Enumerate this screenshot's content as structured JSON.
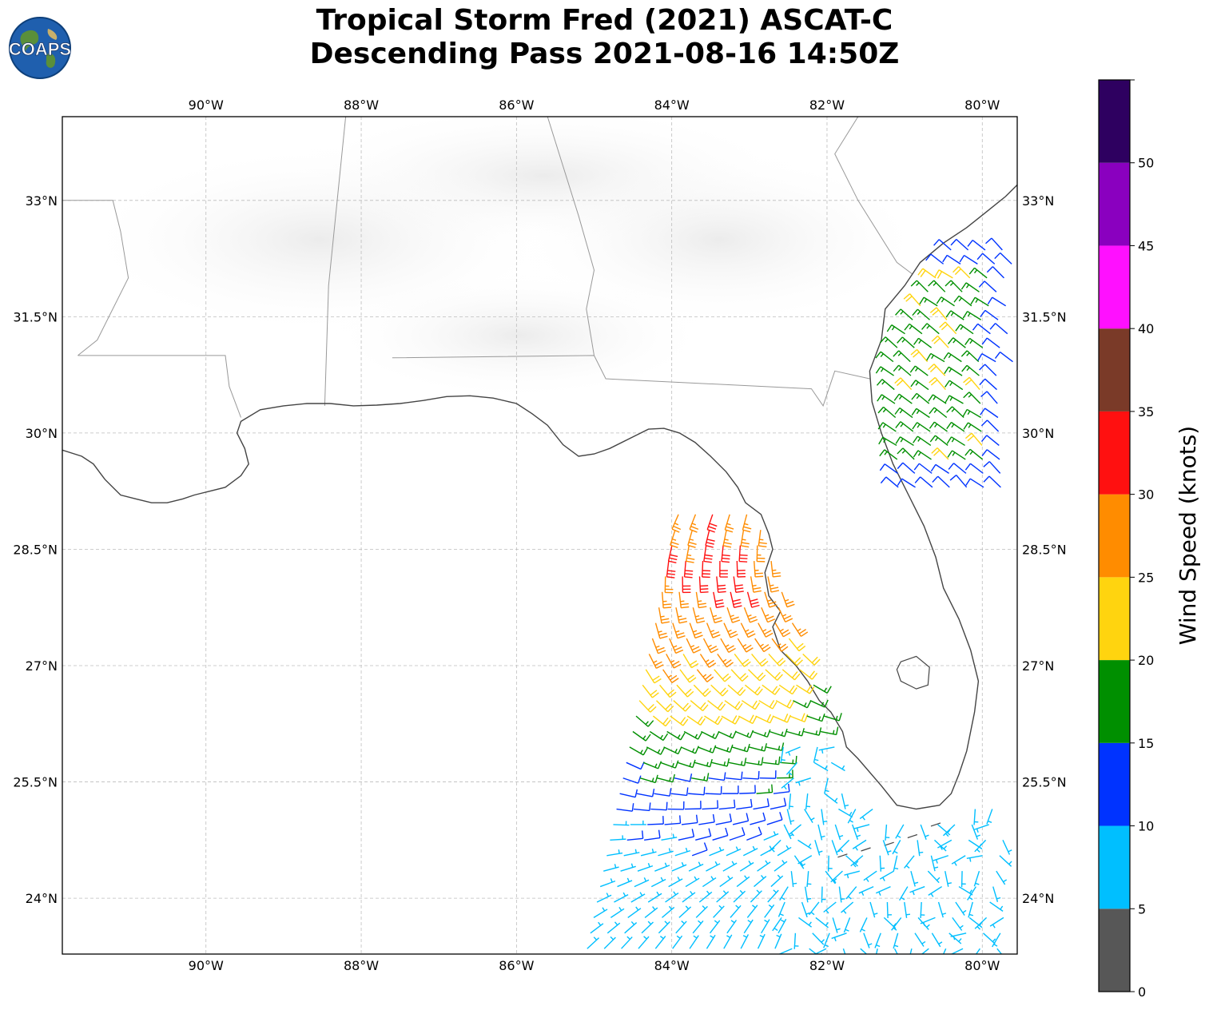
{
  "header": {
    "logo_text": "COAPS",
    "title_line1": "Tropical Storm Fred (2021) ASCAT-C",
    "title_line2": "Descending Pass 2021-08-16 14:50Z"
  },
  "map": {
    "lon_range": [
      -91.85,
      -79.55
    ],
    "lat_range": [
      23.28,
      34.08
    ],
    "lon_ticks": [
      "90°W",
      "88°W",
      "86°W",
      "84°W",
      "82°W",
      "80°W"
    ],
    "lon_tick_values": [
      -90,
      -88,
      -86,
      -84,
      -82,
      -80
    ],
    "lat_ticks": [
      "24°N",
      "25.5°N",
      "27°N",
      "28.5°N",
      "30°N",
      "31.5°N",
      "33°N"
    ],
    "lat_tick_values": [
      24,
      25.5,
      27,
      28.5,
      30,
      31.5,
      33
    ],
    "grid": "dashed",
    "background": "satellite cloud imagery (grayscale)",
    "coastline_color": "#444444",
    "border_color": "#999999",
    "barb_convention": "wind barbs, one full barb = 10 knots, half barb = 5 knots"
  },
  "colorbar": {
    "label": "Wind Speed (knots)",
    "tick_labels": [
      "0",
      "5",
      "10",
      "15",
      "20",
      "25",
      "30",
      "35",
      "40",
      "45",
      "50"
    ],
    "bins": [
      {
        "min": 0,
        "max": 5,
        "color": "#575757"
      },
      {
        "min": 5,
        "max": 10,
        "color": "#00bfff"
      },
      {
        "min": 10,
        "max": 15,
        "color": "#0033ff"
      },
      {
        "min": 15,
        "max": 20,
        "color": "#008f00"
      },
      {
        "min": 20,
        "max": 25,
        "color": "#ffd40f"
      },
      {
        "min": 25,
        "max": 30,
        "color": "#ff8c00"
      },
      {
        "min": 30,
        "max": 35,
        "color": "#ff1010"
      },
      {
        "min": 35,
        "max": 40,
        "color": "#7a3a28"
      },
      {
        "min": 40,
        "max": 45,
        "color": "#ff10ff"
      },
      {
        "min": 45,
        "max": 50,
        "color": "#8a00bf"
      },
      {
        "min": 50,
        "max": 55,
        "color": "#2e0060"
      }
    ]
  },
  "coastline": [
    [
      -91.85,
      29.78
    ],
    [
      -91.6,
      29.7
    ],
    [
      -91.45,
      29.6
    ],
    [
      -91.3,
      29.4
    ],
    [
      -91.1,
      29.2
    ],
    [
      -90.9,
      29.15
    ],
    [
      -90.7,
      29.1
    ],
    [
      -90.5,
      29.1
    ],
    [
      -90.3,
      29.15
    ],
    [
      -90.15,
      29.2
    ],
    [
      -89.95,
      29.25
    ],
    [
      -89.75,
      29.3
    ],
    [
      -89.55,
      29.45
    ],
    [
      -89.45,
      29.6
    ],
    [
      -89.5,
      29.8
    ],
    [
      -89.6,
      30.0
    ],
    [
      -89.55,
      30.15
    ],
    [
      -89.3,
      30.3
    ],
    [
      -89.0,
      30.35
    ],
    [
      -88.7,
      30.38
    ],
    [
      -88.4,
      30.38
    ],
    [
      -88.1,
      30.35
    ],
    [
      -87.8,
      30.36
    ],
    [
      -87.5,
      30.38
    ],
    [
      -87.2,
      30.42
    ],
    [
      -86.9,
      30.47
    ],
    [
      -86.6,
      30.48
    ],
    [
      -86.3,
      30.45
    ],
    [
      -86.0,
      30.38
    ],
    [
      -85.8,
      30.25
    ],
    [
      -85.6,
      30.1
    ],
    [
      -85.4,
      29.85
    ],
    [
      -85.2,
      29.7
    ],
    [
      -85.0,
      29.73
    ],
    [
      -84.8,
      29.8
    ],
    [
      -84.5,
      29.95
    ],
    [
      -84.3,
      30.05
    ],
    [
      -84.1,
      30.06
    ],
    [
      -83.9,
      30.0
    ],
    [
      -83.7,
      29.88
    ],
    [
      -83.5,
      29.7
    ],
    [
      -83.3,
      29.5
    ],
    [
      -83.15,
      29.3
    ],
    [
      -83.05,
      29.1
    ],
    [
      -82.85,
      28.95
    ],
    [
      -82.75,
      28.7
    ],
    [
      -82.7,
      28.5
    ],
    [
      -82.8,
      28.2
    ],
    [
      -82.75,
      27.9
    ],
    [
      -82.6,
      27.7
    ],
    [
      -82.7,
      27.5
    ],
    [
      -82.6,
      27.2
    ],
    [
      -82.4,
      27.0
    ],
    [
      -82.25,
      26.8
    ],
    [
      -82.1,
      26.55
    ],
    [
      -81.95,
      26.4
    ],
    [
      -81.8,
      26.15
    ],
    [
      -81.75,
      25.95
    ],
    [
      -81.6,
      25.8
    ],
    [
      -81.3,
      25.45
    ],
    [
      -81.1,
      25.2
    ],
    [
      -80.85,
      25.15
    ],
    [
      -80.55,
      25.2
    ],
    [
      -80.4,
      25.35
    ],
    [
      -80.3,
      25.6
    ],
    [
      -80.2,
      25.9
    ],
    [
      -80.1,
      26.4
    ],
    [
      -80.05,
      26.8
    ],
    [
      -80.15,
      27.2
    ],
    [
      -80.3,
      27.6
    ],
    [
      -80.5,
      28.0
    ],
    [
      -80.6,
      28.4
    ],
    [
      -80.75,
      28.8
    ],
    [
      -80.95,
      29.2
    ],
    [
      -81.15,
      29.6
    ],
    [
      -81.3,
      30.0
    ],
    [
      -81.42,
      30.4
    ],
    [
      -81.45,
      30.8
    ],
    [
      -81.3,
      31.2
    ],
    [
      -81.25,
      31.6
    ],
    [
      -81.0,
      31.9
    ],
    [
      -80.8,
      32.2
    ],
    [
      -80.5,
      32.45
    ],
    [
      -80.2,
      32.65
    ],
    [
      -79.95,
      32.85
    ],
    [
      -79.7,
      33.05
    ],
    [
      -79.55,
      33.2
    ]
  ],
  "lake_okeechobee": [
    [
      -81.05,
      27.05
    ],
    [
      -80.85,
      27.12
    ],
    [
      -80.68,
      26.98
    ],
    [
      -80.7,
      26.75
    ],
    [
      -80.85,
      26.7
    ],
    [
      -81.05,
      26.8
    ],
    [
      -81.1,
      26.95
    ]
  ],
  "state_borders": [
    [
      [
        -91.65,
        31.0
      ],
      [
        -89.75,
        31.0
      ],
      [
        -89.7,
        30.6
      ],
      [
        -89.55,
        30.2
      ]
    ],
    [
      [
        -88.47,
        30.35
      ],
      [
        -88.42,
        31.9
      ],
      [
        -88.2,
        34.08
      ]
    ],
    [
      [
        -87.6,
        30.97
      ],
      [
        -85.0,
        31.0
      ],
      [
        -84.85,
        30.7
      ],
      [
        -82.2,
        30.57
      ],
      [
        -82.05,
        30.35
      ],
      [
        -81.9,
        30.8
      ],
      [
        -81.45,
        30.7
      ]
    ],
    [
      [
        -85.0,
        31.0
      ],
      [
        -85.1,
        31.6
      ],
      [
        -85.0,
        32.1
      ],
      [
        -85.2,
        32.8
      ],
      [
        -85.6,
        34.08
      ]
    ],
    [
      [
        -91.85,
        33.0
      ],
      [
        -91.2,
        33.0
      ],
      [
        -91.1,
        32.6
      ],
      [
        -91.0,
        32.0
      ],
      [
        -91.4,
        31.2
      ],
      [
        -91.65,
        31.0
      ]
    ],
    [
      [
        -81.6,
        34.08
      ],
      [
        -81.9,
        33.6
      ],
      [
        -81.6,
        33.0
      ],
      [
        -81.1,
        32.2
      ],
      [
        -80.9,
        32.05
      ]
    ]
  ],
  "swath": {
    "west_edge": [
      [
        -85.1,
        23.3
      ],
      [
        -84.3,
        27.2
      ],
      [
        -83.85,
        29.05
      ]
    ],
    "east_edge": [
      [
        -79.62,
        23.3
      ],
      [
        -79.8,
        25.5
      ],
      [
        -82.0,
        26.5
      ],
      [
        -82.8,
        28.2
      ],
      [
        -82.9,
        29.05
      ]
    ],
    "atlantic_west": [
      -81.15,
      29.7,
      -80.2,
      32.5
    ]
  }
}
